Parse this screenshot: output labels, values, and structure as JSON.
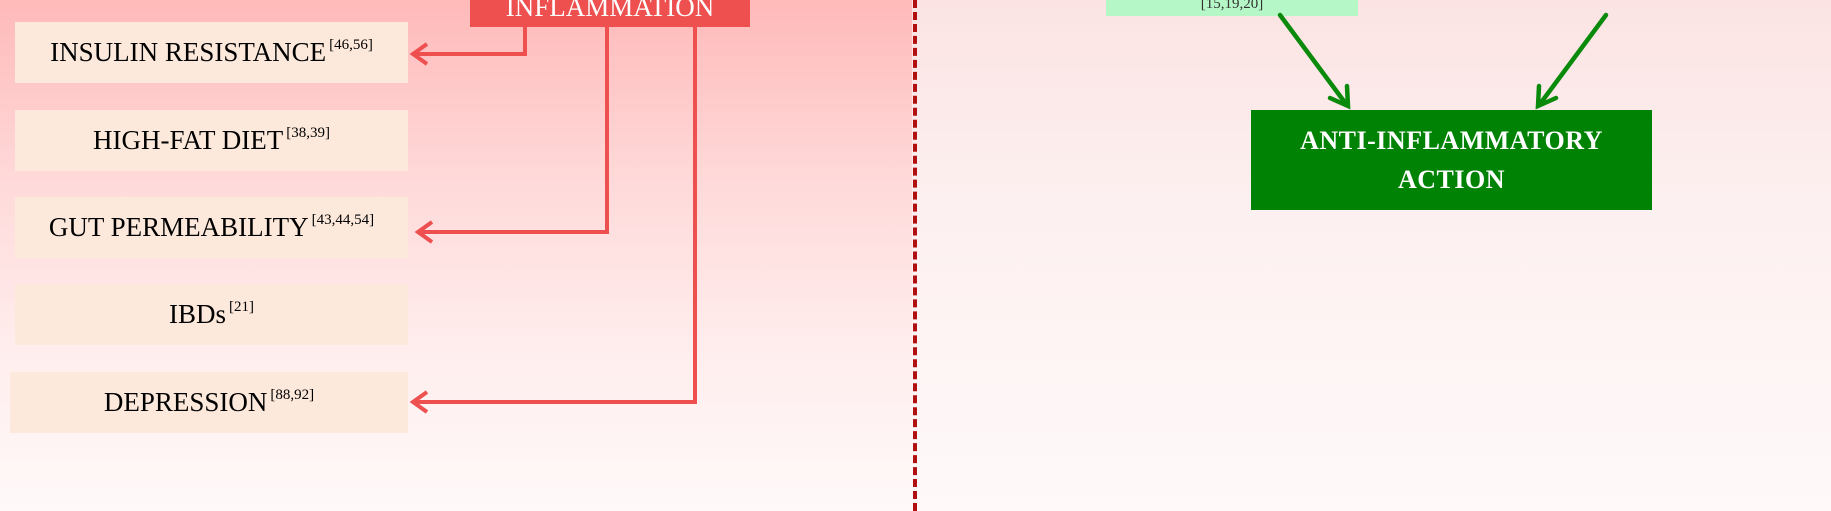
{
  "left_panel": {
    "top_box": "INFLAMMATION",
    "items": [
      {
        "label": "INSULIN RESISTANCE",
        "refs": "[46,56]"
      },
      {
        "label": "HIGH-FAT DIET",
        "refs": "[38,39]"
      },
      {
        "label": "GUT PERMEABILITY",
        "refs": "[43,44,54]"
      },
      {
        "label": "IBDs",
        "refs": "[21]"
      },
      {
        "label": "DEPRESSION",
        "refs": "[88,92]"
      }
    ]
  },
  "right_panel": {
    "top_box_refs": "[15,19,20]",
    "result_line1": "ANTI-INFLAMMATORY",
    "result_line2": "ACTION"
  },
  "colors": {
    "red_accent": "#ee4f4f",
    "green_box": "#008205",
    "green_arrow": "#0a8a0a",
    "divider": "#b01010",
    "item_fill": "#fde9dc"
  }
}
